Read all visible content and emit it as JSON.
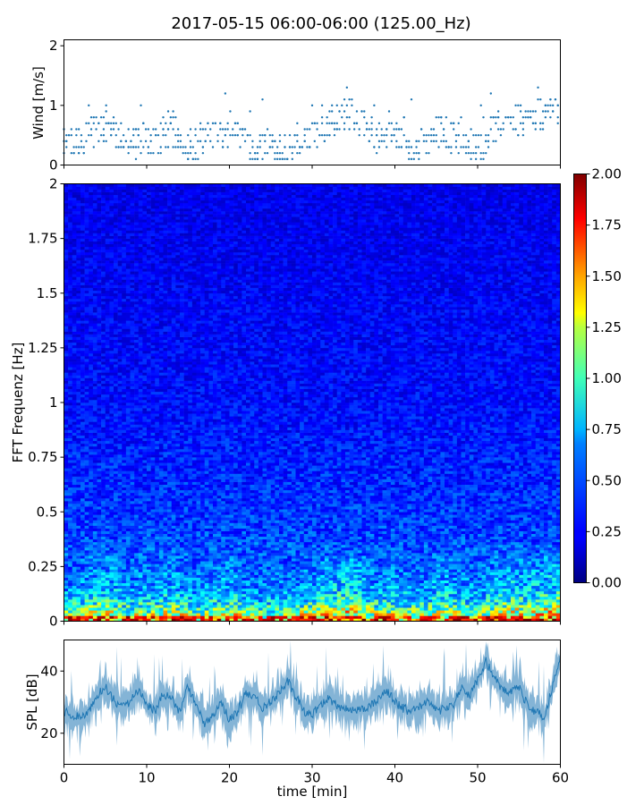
{
  "chart_data": [
    {
      "id": "wind",
      "type": "scatter",
      "title": "2017-05-15 06:00-06:00 (125.00_Hz)",
      "xlabel": "",
      "ylabel": "Wind [m/s]",
      "xlim": [
        0,
        60
      ],
      "ylim": [
        0,
        2.1
      ],
      "xticks": [
        0,
        10,
        20,
        30,
        40,
        50,
        60
      ],
      "yticks": [
        0,
        1,
        2
      ],
      "ytick_labels": [
        "0",
        "1",
        "2"
      ],
      "marker_color": "#1f77b4",
      "series": [
        {
          "x": [
            0.5,
            2,
            3.5,
            5,
            6.5,
            8,
            9.5,
            11,
            12.5,
            14,
            15.5,
            17,
            18.5,
            20,
            21.5,
            23,
            24.5,
            26,
            27.5,
            29,
            30.5,
            32,
            33.5,
            35,
            36.5,
            38,
            39.5,
            41,
            42.5,
            44,
            45.5,
            47,
            48.5,
            50,
            51.5,
            53,
            54.5,
            56,
            57.5,
            59
          ],
          "y": [
            0.3,
            0.4,
            0.6,
            0.7,
            0.5,
            0.3,
            0.5,
            0.4,
            0.6,
            0.5,
            0.3,
            0.4,
            0.5,
            0.6,
            0.4,
            0.2,
            0.3,
            0.3,
            0.2,
            0.5,
            0.6,
            0.7,
            0.8,
            0.9,
            0.6,
            0.4,
            0.5,
            0.4,
            0.3,
            0.4,
            0.6,
            0.5,
            0.4,
            0.3,
            0.5,
            0.7,
            0.8,
            0.7,
            0.8,
            0.9
          ]
        }
      ]
    },
    {
      "id": "spectrogram",
      "type": "heatmap",
      "xlabel": "",
      "ylabel": "FFT Frequenz [Hz]",
      "xlim": [
        0,
        60
      ],
      "ylim": [
        0,
        2
      ],
      "xticks": [
        0,
        10,
        20,
        30,
        40,
        50,
        60
      ],
      "yticks": [
        0,
        0.25,
        0.5,
        0.75,
        1,
        1.25,
        1.5,
        1.75,
        2
      ],
      "ytick_labels": [
        "0",
        "0.25",
        "0.5",
        "0.75",
        "1",
        "1.25",
        "1.5",
        "1.75",
        "2"
      ],
      "colormap": "jet",
      "colorbar": {
        "range": [
          0,
          2
        ],
        "ticks": [
          0,
          0.25,
          0.5,
          0.75,
          1,
          1.25,
          1.5,
          1.75,
          2
        ],
        "tick_labels": [
          "0.00",
          "0.25",
          "0.50",
          "0.75",
          "1.00",
          "1.25",
          "1.50",
          "1.75",
          "2.00"
        ]
      },
      "frequency_profile": {
        "freq": [
          0,
          0.02,
          0.05,
          0.1,
          0.15,
          0.25,
          0.4,
          0.6,
          0.8,
          1.0,
          1.5,
          2.0
        ],
        "level": [
          1.7,
          1.3,
          1.0,
          0.75,
          0.6,
          0.5,
          0.4,
          0.35,
          0.32,
          0.28,
          0.25,
          0.22
        ]
      }
    },
    {
      "id": "spl",
      "type": "line",
      "xlabel": "time [min]",
      "ylabel": "SPL [dB]",
      "xlim": [
        0,
        60
      ],
      "ylim": [
        10,
        50
      ],
      "xticks": [
        0,
        10,
        20,
        30,
        40,
        50,
        60
      ],
      "xtick_labels": [
        "0",
        "10",
        "20",
        "30",
        "40",
        "50",
        "60"
      ],
      "yticks": [
        20,
        40
      ],
      "ytick_labels": [
        "20",
        "40"
      ],
      "line_color": "#1f77b4",
      "series": [
        {
          "x": [
            0,
            1,
            2,
            3,
            4,
            5,
            6,
            7,
            8,
            9,
            10,
            11,
            12,
            13,
            14,
            15,
            16,
            17,
            18,
            19,
            20,
            21,
            22,
            23,
            24,
            25,
            26,
            27,
            28,
            29,
            30,
            31,
            32,
            33,
            34,
            35,
            36,
            37,
            38,
            39,
            40,
            41,
            42,
            43,
            44,
            45,
            46,
            47,
            48,
            49,
            50,
            51,
            52,
            53,
            54,
            55,
            56,
            57,
            58,
            59,
            60
          ],
          "y": [
            27,
            26,
            25,
            27,
            32,
            35,
            31,
            28,
            30,
            34,
            29,
            27,
            33,
            31,
            27,
            35,
            29,
            23,
            26,
            30,
            24,
            27,
            33,
            32,
            28,
            30,
            33,
            37,
            32,
            27,
            26,
            29,
            31,
            29,
            28,
            27,
            28,
            29,
            31,
            34,
            30,
            28,
            27,
            29,
            30,
            27,
            28,
            29,
            35,
            32,
            37,
            43,
            38,
            34,
            33,
            35,
            29,
            27,
            25,
            34,
            45
          ]
        }
      ]
    }
  ]
}
